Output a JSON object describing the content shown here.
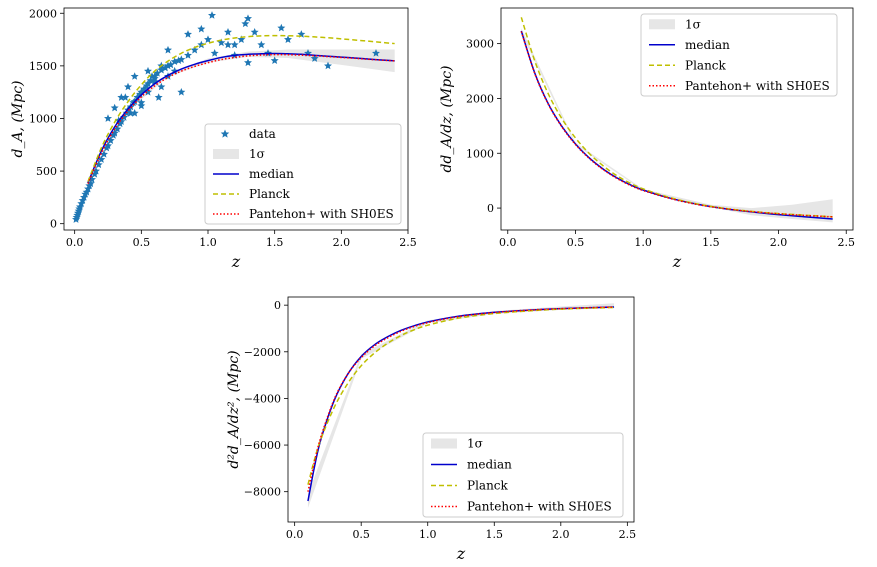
{
  "chart_data": [
    {
      "type": "line",
      "id": "dA",
      "xlabel": "z",
      "ylabel_main": "d_A, (Mpc)",
      "xlim": [
        -0.08,
        2.5
      ],
      "ylim": [
        -60,
        2050
      ],
      "xticks": [
        0.0,
        0.5,
        1.0,
        1.5,
        2.0,
        2.5
      ],
      "xtick_labels": [
        "0.0",
        "0.5",
        "1.0",
        "1.5",
        "2.0",
        "2.5"
      ],
      "yticks": [
        0,
        500,
        1000,
        1500,
        2000
      ],
      "ytick_labels": [
        "0",
        "500",
        "1000",
        "1500",
        "2000"
      ],
      "legend": [
        "data",
        "1σ",
        "median",
        "Planck",
        "Pantehon+ with SH0ES"
      ],
      "legend_position": "lower-right",
      "grid": false,
      "colors": {
        "data": "#1f77b4",
        "band": "#e6e6e6",
        "median": "#0000cc",
        "planck": "#bfbf00",
        "pantheon": "#ff0000"
      },
      "scatter": {
        "name": "data",
        "x": [
          0.01,
          0.015,
          0.02,
          0.025,
          0.03,
          0.035,
          0.04,
          0.05,
          0.06,
          0.07,
          0.08,
          0.09,
          0.1,
          0.11,
          0.12,
          0.13,
          0.15,
          0.16,
          0.18,
          0.2,
          0.22,
          0.24,
          0.25,
          0.27,
          0.29,
          0.3,
          0.32,
          0.34,
          0.35,
          0.37,
          0.39,
          0.4,
          0.42,
          0.44,
          0.45,
          0.47,
          0.49,
          0.5,
          0.52,
          0.54,
          0.55,
          0.57,
          0.6,
          0.62,
          0.65,
          0.68,
          0.7,
          0.72,
          0.75,
          0.78,
          0.8,
          0.85,
          0.9,
          0.95,
          1.0,
          1.03,
          1.1,
          1.15,
          1.2,
          1.25,
          1.3,
          1.35,
          1.4,
          1.45,
          1.5,
          1.55,
          1.6,
          1.7,
          1.75,
          1.8,
          1.9,
          2.26,
          0.3,
          0.35,
          0.4,
          0.45,
          0.5,
          0.55,
          0.6,
          0.65,
          0.7,
          0.75,
          0.8,
          0.45,
          0.5,
          0.55,
          0.6,
          0.65,
          0.7,
          1.05,
          1.2,
          1.3,
          0.85,
          0.95,
          1.28,
          1.15,
          0.25,
          0.33,
          0.38,
          0.42,
          0.58,
          0.63
        ],
        "y": [
          40,
          60,
          80,
          100,
          120,
          140,
          160,
          190,
          220,
          250,
          280,
          300,
          330,
          360,
          380,
          420,
          470,
          500,
          560,
          610,
          660,
          720,
          740,
          790,
          840,
          860,
          900,
          950,
          970,
          1010,
          1050,
          1080,
          1110,
          1150,
          1160,
          1200,
          1230,
          1250,
          1280,
          1310,
          1330,
          1360,
          1400,
          1430,
          1460,
          1480,
          1500,
          1510,
          1540,
          1550,
          1560,
          1600,
          1650,
          1700,
          1750,
          1980,
          1720,
          1820,
          1600,
          1750,
          1950,
          1820,
          1700,
          1620,
          1550,
          1860,
          1750,
          1800,
          1620,
          1570,
          1500,
          1620,
          1100,
          1200,
          1300,
          1400,
          1150,
          1450,
          1350,
          1500,
          1650,
          1450,
          1250,
          1050,
          1120,
          1250,
          1380,
          1300,
          1400,
          1620,
          1700,
          1530,
          1800,
          1850,
          1900,
          1700,
          1000,
          980,
          1200,
          1050,
          1400,
          1200
        ]
      },
      "series": [
        {
          "name": "median",
          "x": [
            0.1,
            0.2,
            0.3,
            0.4,
            0.5,
            0.6,
            0.7,
            0.8,
            0.9,
            1.0,
            1.1,
            1.2,
            1.3,
            1.4,
            1.5,
            1.6,
            1.7,
            1.8,
            1.9,
            2.0,
            2.1,
            2.2,
            2.3,
            2.4
          ],
          "y": [
            390,
            690,
            920,
            1090,
            1225,
            1330,
            1410,
            1470,
            1515,
            1550,
            1580,
            1600,
            1610,
            1615,
            1618,
            1615,
            1610,
            1600,
            1592,
            1583,
            1575,
            1565,
            1556,
            1548
          ]
        },
        {
          "name": "Planck",
          "x": [
            0.1,
            0.2,
            0.3,
            0.4,
            0.5,
            0.6,
            0.7,
            0.8,
            0.9,
            1.0,
            1.1,
            1.2,
            1.3,
            1.4,
            1.5,
            1.6,
            1.7,
            1.8,
            1.9,
            2.0,
            2.1,
            2.2,
            2.3,
            2.4
          ],
          "y": [
            400,
            720,
            965,
            1160,
            1320,
            1450,
            1545,
            1620,
            1675,
            1715,
            1745,
            1765,
            1778,
            1785,
            1788,
            1786,
            1782,
            1775,
            1767,
            1757,
            1746,
            1735,
            1723,
            1712
          ]
        },
        {
          "name": "Pantehon+ with SH0ES",
          "x": [
            0.1,
            0.2,
            0.3,
            0.4,
            0.5,
            0.6,
            0.7,
            0.8,
            0.9,
            1.0,
            1.1,
            1.2,
            1.3,
            1.4,
            1.5,
            1.6,
            1.7,
            1.8,
            1.9,
            2.0,
            2.1,
            2.2,
            2.3,
            2.4
          ],
          "y": [
            380,
            670,
            900,
            1070,
            1205,
            1310,
            1390,
            1450,
            1495,
            1530,
            1560,
            1580,
            1595,
            1603,
            1607,
            1606,
            1602,
            1596,
            1588,
            1580,
            1572,
            1563,
            1555,
            1547
          ]
        }
      ],
      "band": {
        "name": "1σ",
        "x": [
          0.1,
          0.4,
          0.7,
          1.0,
          1.3,
          1.6,
          2.0,
          2.4
        ],
        "lower": [
          380,
          1075,
          1395,
          1530,
          1585,
          1575,
          1510,
          1440
        ],
        "upper": [
          400,
          1105,
          1425,
          1570,
          1635,
          1655,
          1655,
          1655
        ]
      }
    },
    {
      "type": "line",
      "id": "ddA",
      "xlabel": "z",
      "ylabel_main": "dd_A/dz, (Mpc)",
      "xlim": [
        -0.05,
        2.55
      ],
      "ylim": [
        -400,
        3650
      ],
      "xticks": [
        0.0,
        0.5,
        1.0,
        1.5,
        2.0,
        2.5
      ],
      "xtick_labels": [
        "0.0",
        "0.5",
        "1.0",
        "1.5",
        "2.0",
        "2.5"
      ],
      "yticks": [
        0,
        1000,
        2000,
        3000
      ],
      "ytick_labels": [
        "0",
        "1000",
        "2000",
        "3000"
      ],
      "legend": [
        "1σ",
        "median",
        "Planck",
        "Pantehon+ with SH0ES"
      ],
      "legend_position": "upper-right",
      "grid": false,
      "series": [
        {
          "name": "median",
          "x": [
            0.1,
            0.2,
            0.3,
            0.4,
            0.5,
            0.6,
            0.7,
            0.8,
            0.9,
            1.0,
            1.2,
            1.4,
            1.6,
            1.8,
            2.0,
            2.2,
            2.4
          ],
          "y": [
            3230,
            2460,
            1900,
            1490,
            1170,
            920,
            720,
            560,
            430,
            330,
            180,
            70,
            -10,
            -70,
            -120,
            -160,
            -200
          ]
        },
        {
          "name": "Planck",
          "x": [
            0.1,
            0.2,
            0.3,
            0.4,
            0.5,
            0.6,
            0.7,
            0.8,
            0.9,
            1.0,
            1.2,
            1.4,
            1.6,
            1.8,
            2.0,
            2.2,
            2.4
          ],
          "y": [
            3480,
            2680,
            2080,
            1630,
            1280,
            1000,
            780,
            600,
            460,
            350,
            190,
            75,
            -5,
            -60,
            -100,
            -130,
            -160
          ]
        },
        {
          "name": "Pantehon+ with SH0ES",
          "x": [
            0.1,
            0.2,
            0.3,
            0.4,
            0.5,
            0.6,
            0.7,
            0.8,
            0.9,
            1.0,
            1.2,
            1.4,
            1.6,
            1.8,
            2.0,
            2.2,
            2.4
          ],
          "y": [
            3220,
            2450,
            1890,
            1480,
            1160,
            910,
            710,
            550,
            420,
            320,
            175,
            65,
            -10,
            -65,
            -105,
            -135,
            -160
          ]
        }
      ],
      "band": {
        "name": "1σ",
        "x": [
          0.1,
          0.5,
          1.0,
          1.5,
          1.8,
          2.1,
          2.4
        ],
        "lower": [
          3180,
          1150,
          320,
          20,
          -130,
          -200,
          -260
        ],
        "upper": [
          3280,
          1195,
          345,
          60,
          0,
          60,
          160
        ]
      }
    },
    {
      "type": "line",
      "id": "d2dA",
      "xlabel": "z",
      "ylabel_main": "d²d_A/dz², (Mpc)",
      "xlim": [
        -0.05,
        2.55
      ],
      "ylim": [
        -9300,
        350
      ],
      "xticks": [
        0.0,
        0.5,
        1.0,
        1.5,
        2.0,
        2.5
      ],
      "xtick_labels": [
        "0.0",
        "0.5",
        "1.0",
        "1.5",
        "2.0",
        "2.5"
      ],
      "yticks": [
        0,
        -2000,
        -4000,
        -6000,
        -8000
      ],
      "ytick_labels": [
        "0",
        "−2000",
        "−4000",
        "−6000",
        "−8000"
      ],
      "legend": [
        "1σ",
        "median",
        "Planck",
        "Pantehon+ with SH0ES"
      ],
      "legend_position": "lower-right",
      "grid": false,
      "series": [
        {
          "name": "median",
          "x": [
            0.1,
            0.15,
            0.2,
            0.3,
            0.4,
            0.5,
            0.6,
            0.7,
            0.8,
            0.9,
            1.0,
            1.2,
            1.4,
            1.6,
            1.8,
            2.0,
            2.2,
            2.4
          ],
          "y": [
            -8400,
            -6900,
            -5700,
            -4050,
            -2950,
            -2200,
            -1700,
            -1350,
            -1080,
            -880,
            -720,
            -500,
            -360,
            -270,
            -200,
            -150,
            -110,
            -80
          ]
        },
        {
          "name": "Planck",
          "x": [
            0.1,
            0.15,
            0.2,
            0.3,
            0.4,
            0.5,
            0.6,
            0.7,
            0.8,
            0.9,
            1.0,
            1.2,
            1.4,
            1.6,
            1.8,
            2.0,
            2.2,
            2.4
          ],
          "y": [
            -7700,
            -6600,
            -5700,
            -4350,
            -3350,
            -2600,
            -2050,
            -1630,
            -1300,
            -1050,
            -860,
            -590,
            -420,
            -310,
            -230,
            -170,
            -130,
            -100
          ]
        },
        {
          "name": "Pantehon+ with SH0ES",
          "x": [
            0.1,
            0.15,
            0.2,
            0.3,
            0.4,
            0.5,
            0.6,
            0.7,
            0.8,
            0.9,
            1.0,
            1.2,
            1.4,
            1.6,
            1.8,
            2.0,
            2.2,
            2.4
          ],
          "y": [
            -8000,
            -6700,
            -5600,
            -4000,
            -2950,
            -2250,
            -1750,
            -1400,
            -1120,
            -910,
            -750,
            -520,
            -370,
            -270,
            -200,
            -150,
            -110,
            -80
          ]
        }
      ],
      "band": {
        "name": "1σ",
        "x": [
          0.1,
          0.5,
          1.0,
          1.5,
          2.0,
          2.4
        ],
        "lower": [
          -8700,
          -2300,
          -780,
          -380,
          -200,
          -140
        ],
        "upper": [
          -8100,
          -2100,
          -650,
          -250,
          -60,
          80
        ]
      }
    }
  ]
}
